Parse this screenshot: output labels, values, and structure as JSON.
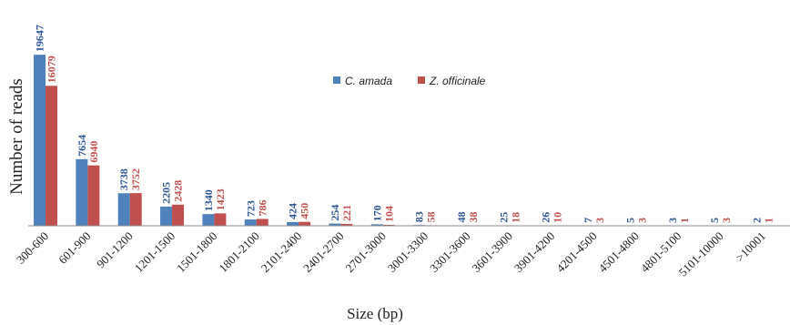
{
  "chart_data": {
    "type": "bar",
    "title": "",
    "xlabel": "Size (bp)",
    "ylabel": "Number of reads",
    "categories": [
      "300-600",
      "601-900",
      "901-1200",
      "1201-1500",
      "1501-1800",
      "1801-2100",
      "2101-2400",
      "2401-2700",
      "2701-3000",
      "3001-3300",
      "3301-3600",
      "3601-3900",
      "3901-4200",
      "4201-4500",
      "4501-4800",
      "4801-5100",
      "5101-10000",
      ">10001"
    ],
    "series": [
      {
        "name": "C. amada",
        "color": "#4f81bd",
        "values": [
          19647,
          7654,
          3738,
          2205,
          1340,
          723,
          424,
          254,
          170,
          83,
          48,
          25,
          26,
          7,
          5,
          3,
          5,
          2
        ]
      },
      {
        "name": "Z. officinale",
        "color": "#c0504d",
        "values": [
          16079,
          6940,
          3752,
          2428,
          1423,
          786,
          450,
          221,
          104,
          58,
          38,
          18,
          10,
          3,
          3,
          1,
          3,
          1
        ]
      }
    ],
    "ylim": [
      0,
      20500
    ],
    "grid": false,
    "legend_position": "top-center"
  }
}
